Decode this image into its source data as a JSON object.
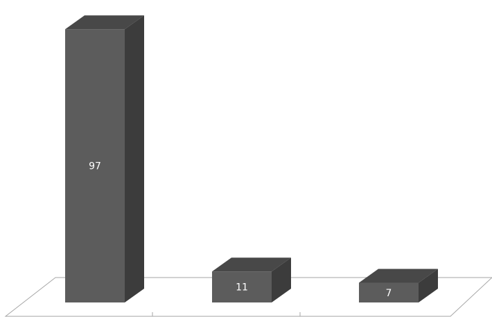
{
  "chart_data": {
    "type": "bar",
    "style": "3d",
    "categories": [
      "",
      "",
      ""
    ],
    "values": [
      97,
      11,
      7
    ],
    "data_labels": [
      "97",
      "11",
      "7"
    ],
    "title": "",
    "xlabel": "",
    "ylabel": "",
    "ylim": [
      0,
      100
    ],
    "grid": false,
    "legend": "none",
    "colors": {
      "bar_front": "#5c5c5c",
      "bar_side": "#3c3c3c",
      "bar_top": "#484848",
      "floor_line": "#a6a6a6",
      "label": "#ffffff"
    }
  }
}
